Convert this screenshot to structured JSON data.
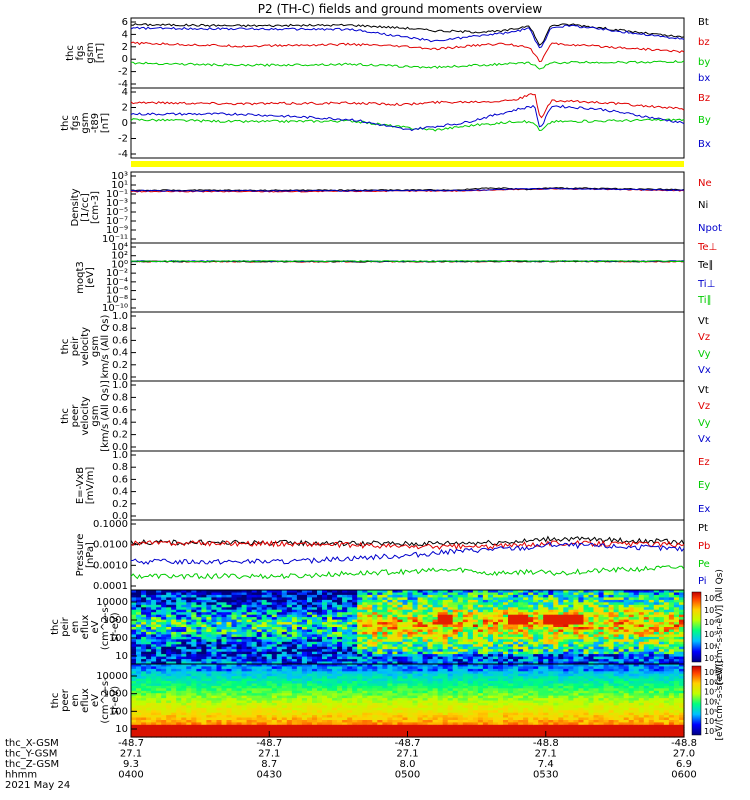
{
  "title": "P2 (TH-C) fields and ground moments overview",
  "colors": {
    "black": "#000000",
    "red": "#e00000",
    "green": "#00cc00",
    "blue": "#0000cc",
    "yellow": "#ffff00"
  },
  "chart_data": [
    {
      "type": "line",
      "ylabel": [
        "thc",
        "fgs",
        "gsm",
        "[nT]"
      ],
      "ylim": [
        -4,
        6
      ],
      "yticks": [
        "6",
        "4",
        "2",
        "0",
        "-2",
        "-4"
      ],
      "legend": [
        "Bt",
        "bz",
        "by",
        "bx"
      ],
      "series": [
        {
          "name": "Bt",
          "color": "black",
          "points": [
            [
              0,
              5.6
            ],
            [
              20,
              5.4
            ],
            [
              40,
              5.5
            ],
            [
              50,
              5.0
            ],
            [
              55,
              4.6
            ],
            [
              62,
              4.4
            ],
            [
              67,
              4.5
            ],
            [
              70,
              5.0
            ],
            [
              72,
              5.5
            ],
            [
              74,
              2.0
            ],
            [
              76,
              5.5
            ],
            [
              80,
              5.6
            ],
            [
              90,
              4.5
            ],
            [
              100,
              3.5
            ]
          ]
        },
        {
          "name": "bz",
          "color": "red",
          "points": [
            [
              0,
              2.6
            ],
            [
              20,
              2.1
            ],
            [
              40,
              2.4
            ],
            [
              50,
              2.0
            ],
            [
              55,
              1.6
            ],
            [
              62,
              2.2
            ],
            [
              67,
              2.5
            ],
            [
              70,
              2.2
            ],
            [
              72,
              2.0
            ],
            [
              74,
              -0.5
            ],
            [
              76,
              2.5
            ],
            [
              80,
              2.3
            ],
            [
              90,
              1.8
            ],
            [
              100,
              1.2
            ]
          ]
        },
        {
          "name": "by",
          "color": "green",
          "points": [
            [
              0,
              -0.6
            ],
            [
              20,
              -1.0
            ],
            [
              40,
              -0.8
            ],
            [
              50,
              -1.2
            ],
            [
              55,
              -1.3
            ],
            [
              62,
              -1.0
            ],
            [
              67,
              -0.8
            ],
            [
              70,
              -0.7
            ],
            [
              72,
              -0.6
            ],
            [
              74,
              -1.5
            ],
            [
              76,
              -0.6
            ],
            [
              80,
              -0.5
            ],
            [
              90,
              -0.5
            ],
            [
              100,
              -0.4
            ]
          ]
        },
        {
          "name": "bx",
          "color": "blue",
          "points": [
            [
              0,
              5.0
            ],
            [
              20,
              4.9
            ],
            [
              40,
              4.8
            ],
            [
              50,
              3.5
            ],
            [
              55,
              2.9
            ],
            [
              60,
              3.5
            ],
            [
              65,
              4.0
            ],
            [
              68,
              4.2
            ],
            [
              72,
              5.0
            ],
            [
              74,
              1.5
            ],
            [
              76,
              5.2
            ],
            [
              80,
              5.4
            ],
            [
              90,
              4.3
            ],
            [
              100,
              3.2
            ]
          ]
        }
      ]
    },
    {
      "type": "line",
      "ylabel": [
        "thc",
        "fgs",
        "gsm",
        "-t89",
        "[nT]"
      ],
      "ylim": [
        -5,
        4
      ],
      "yticks": [
        "4",
        "2",
        "0",
        "-2",
        "-4"
      ],
      "legend": [
        "Bz",
        "By",
        "Bx"
      ],
      "series": [
        {
          "name": "Bz",
          "color": "red",
          "points": [
            [
              0,
              2.5
            ],
            [
              20,
              2.3
            ],
            [
              40,
              2.4
            ],
            [
              50,
              2.2
            ],
            [
              55,
              2.5
            ],
            [
              62,
              2.6
            ],
            [
              67,
              2.7
            ],
            [
              70,
              3.0
            ],
            [
              73,
              3.8
            ],
            [
              74,
              0.0
            ],
            [
              76,
              2.7
            ],
            [
              85,
              2.5
            ],
            [
              100,
              1.5
            ]
          ]
        },
        {
          "name": "By",
          "color": "green",
          "points": [
            [
              0,
              0.0
            ],
            [
              20,
              -0.3
            ],
            [
              40,
              -0.2
            ],
            [
              50,
              -1.2
            ],
            [
              55,
              -1.5
            ],
            [
              62,
              -0.8
            ],
            [
              67,
              -0.5
            ],
            [
              70,
              -0.2
            ],
            [
              73,
              -0.5
            ],
            [
              74,
              -1.8
            ],
            [
              76,
              -0.3
            ],
            [
              85,
              -0.2
            ],
            [
              100,
              0.0
            ]
          ]
        },
        {
          "name": "Bx",
          "color": "blue",
          "points": [
            [
              0,
              0.8
            ],
            [
              20,
              0.8
            ],
            [
              40,
              0.0
            ],
            [
              50,
              -1.5
            ],
            [
              55,
              -1.0
            ],
            [
              60,
              -0.5
            ],
            [
              65,
              0.5
            ],
            [
              70,
              1.5
            ],
            [
              73,
              2.0
            ],
            [
              74,
              -1.5
            ],
            [
              76,
              2.0
            ],
            [
              85,
              1.5
            ],
            [
              100,
              -0.5
            ]
          ]
        }
      ]
    },
    {
      "type": "line",
      "ylabel": [
        "Density",
        "[1/cc]",
        "[cm-3]"
      ],
      "ylim_log": [
        -12,
        3
      ],
      "yticks": [
        "10³",
        "10¹",
        "10⁻¹",
        "10⁻³",
        "10⁻⁵",
        "10⁻⁷",
        "10⁻⁹",
        "10⁻¹¹"
      ],
      "legend": [
        "Ne",
        "Ni",
        "Npot"
      ],
      "series": [
        {
          "name": "Ne",
          "color": "red",
          "points": [
            [
              0,
              0.2
            ],
            [
              30,
              0.2
            ],
            [
              60,
              0.3
            ],
            [
              72,
              0.7
            ],
            [
              76,
              0.9
            ],
            [
              100,
              0.3
            ]
          ]
        },
        {
          "name": "Ni",
          "color": "black",
          "points": [
            [
              0,
              0.4
            ],
            [
              30,
              0.4
            ],
            [
              60,
              0.5
            ],
            [
              65,
              1.5
            ],
            [
              72,
              0.6
            ],
            [
              76,
              1.4
            ],
            [
              100,
              0.5
            ]
          ]
        },
        {
          "name": "Npot",
          "color": "blue",
          "points": [
            [
              0,
              0.3
            ],
            [
              30,
              0.3
            ],
            [
              60,
              0.35
            ],
            [
              72,
              0.8
            ],
            [
              76,
              1.0
            ],
            [
              100,
              0.4
            ]
          ]
        }
      ]
    },
    {
      "type": "line",
      "ylabel": [
        "moqt3",
        "[eV]"
      ],
      "ylim_log": [
        -11,
        4
      ],
      "yticks": [
        "10⁴",
        "10²",
        "10⁰",
        "10⁻²",
        "10⁻⁴",
        "10⁻⁶",
        "10⁻⁸",
        "10⁻¹⁰"
      ],
      "legend": [
        "Te⊥",
        "Te∥",
        "Ti⊥",
        "Ti∥"
      ],
      "series": [
        {
          "name": "Te⊥",
          "color": "red",
          "points": [
            [
              0,
              2.5
            ],
            [
              50,
              2.4
            ],
            [
              70,
              2.8
            ],
            [
              100,
              2.6
            ]
          ]
        },
        {
          "name": "Te∥",
          "color": "black",
          "points": [
            [
              0,
              2.6
            ],
            [
              50,
              2.5
            ],
            [
              70,
              2.9
            ],
            [
              100,
              2.7
            ]
          ]
        },
        {
          "name": "Ti⊥",
          "color": "blue",
          "points": [
            [
              0,
              3.3
            ],
            [
              50,
              3.2
            ],
            [
              70,
              3.5
            ],
            [
              100,
              3.3
            ]
          ]
        },
        {
          "name": "Ti∥",
          "color": "green",
          "points": [
            [
              0,
              3.4
            ],
            [
              50,
              3.3
            ],
            [
              70,
              3.6
            ],
            [
              100,
              3.4
            ]
          ]
        }
      ]
    },
    {
      "type": "line",
      "ylabel": [
        "thc",
        "peir",
        "velocity",
        "gsm",
        "km/s (All Qs)"
      ],
      "ylim": [
        0,
        1
      ],
      "yticks": [
        "1.0",
        "0.8",
        "0.6",
        "0.4",
        "0.2",
        "0.0"
      ],
      "legend": [
        "Vt",
        "Vz",
        "Vy",
        "Vx"
      ],
      "series": []
    },
    {
      "type": "line",
      "ylabel": [
        "thc",
        "peer",
        "velocity",
        "gsm",
        "[km/s (All Qs)]"
      ],
      "ylim": [
        0,
        1
      ],
      "yticks": [
        "1.0",
        "0.8",
        "0.6",
        "0.4",
        "0.2",
        "0.0"
      ],
      "legend": [
        "Vt",
        "Vz",
        "Vy",
        "Vx"
      ],
      "series": []
    },
    {
      "type": "line",
      "ylabel": [
        "E=-VxB",
        "[mV/m]"
      ],
      "ylim": [
        0,
        1
      ],
      "yticks": [
        "1.0",
        "0.8",
        "0.6",
        "0.4",
        "0.2",
        "0.0"
      ],
      "legend": [
        "Ez",
        "Ey",
        "Ex"
      ],
      "series": []
    },
    {
      "type": "line",
      "ylabel": [
        "Pressure",
        "[nPa]"
      ],
      "ylim_log": [
        -4,
        -1
      ],
      "yticks": [
        "0.1000",
        "0.0100",
        "0.0010",
        "0.0001"
      ],
      "legend": [
        "Pt",
        "Pb",
        "Pe",
        "Pi"
      ],
      "series": [
        {
          "name": "Pt",
          "color": "black",
          "points": [
            [
              0,
              0.013
            ],
            [
              30,
              0.012
            ],
            [
              50,
              0.011
            ],
            [
              65,
              0.013
            ],
            [
              72,
              0.015
            ],
            [
              76,
              0.02
            ],
            [
              100,
              0.013
            ]
          ]
        },
        {
          "name": "Pb",
          "color": "red",
          "points": [
            [
              0,
              0.012
            ],
            [
              30,
              0.011
            ],
            [
              50,
              0.008
            ],
            [
              65,
              0.008
            ],
            [
              72,
              0.01
            ],
            [
              76,
              0.012
            ],
            [
              100,
              0.01
            ]
          ]
        },
        {
          "name": "Pe",
          "color": "green",
          "points": [
            [
              0,
              0.0003
            ],
            [
              30,
              0.0003
            ],
            [
              50,
              0.0005
            ],
            [
              60,
              0.0006
            ],
            [
              65,
              0.0004
            ],
            [
              72,
              0.0005
            ],
            [
              76,
              0.0004
            ],
            [
              100,
              0.0008
            ]
          ]
        },
        {
          "name": "Pi",
          "color": "blue",
          "points": [
            [
              0,
              0.0015
            ],
            [
              30,
              0.0015
            ],
            [
              50,
              0.003
            ],
            [
              60,
              0.005
            ],
            [
              65,
              0.006
            ],
            [
              72,
              0.007
            ],
            [
              76,
              0.01
            ],
            [
              100,
              0.006
            ]
          ]
        }
      ]
    },
    {
      "type": "heatmap",
      "ylabel": [
        "thc",
        "peir",
        "en",
        "eflux",
        "eV",
        "(cm^2-s-",
        "sr-eV)"
      ],
      "yticks": [
        "10000",
        "1000",
        "100",
        "10"
      ],
      "colorbar_ticks": [
        "10⁸",
        "10⁷",
        "10⁶",
        "10⁵",
        "10⁴",
        "10³"
      ],
      "colorbar_label": "[eV/(cm²-s-sr-eV)] (All Qs)"
    },
    {
      "type": "heatmap",
      "ylabel": [
        "thc",
        "peer",
        "en",
        "eflux",
        "eV",
        "(cm^2-s-",
        "sr-eV)"
      ],
      "yticks": [
        "10000",
        "1000",
        "100",
        "10"
      ],
      "colorbar_ticks": [
        "10⁹",
        "10⁸",
        "10⁷",
        "10⁶",
        "10⁵",
        "10⁴",
        "10³"
      ],
      "colorbar_label": "[eV/(cm²-s-sr-eV)]"
    }
  ],
  "xaxis": {
    "row_labels": [
      "thc_X-GSM",
      "thc_Y-GSM",
      "thc_Z-GSM",
      "hhmm",
      "2021 May 24"
    ],
    "columns": [
      [
        "-48.7",
        "27.1",
        "9.3",
        "0400"
      ],
      [
        "-48.7",
        "27.1",
        "8.7",
        "0430"
      ],
      [
        "-48.7",
        "27.1",
        "8.0",
        "0500"
      ],
      [
        "-48.8",
        "27.1",
        "7.4",
        "0530"
      ],
      [
        "-48.8",
        "27.0",
        "6.9",
        "0600"
      ]
    ]
  }
}
